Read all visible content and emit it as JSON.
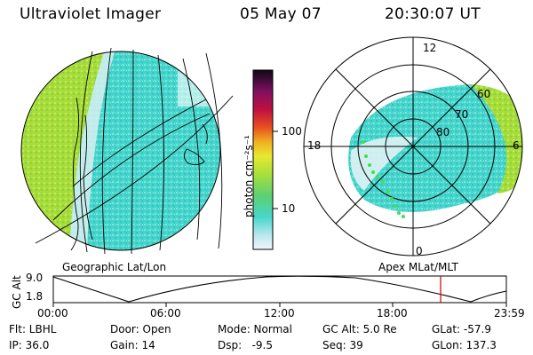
{
  "header": {
    "instrument": "Ultraviolet Imager",
    "date": "05 May 07",
    "time": "20:30:07 UT"
  },
  "panels": {
    "left_label": "Geographic Lat/Lon",
    "right_label": "Apex MLat/MLT"
  },
  "colorbar": {
    "unit_label": "photon cm⁻²s⁻¹",
    "tick_100": "100",
    "tick_10": "10"
  },
  "polar_labels": {
    "top": "12",
    "left": "18",
    "right": "6",
    "bottom": "0",
    "r60": "60",
    "r70": "70",
    "r80": "80"
  },
  "altitude_plot": {
    "axis_label": "GC Alt",
    "y_top": "9.0",
    "y_bottom": "1.8",
    "x_ticks": [
      "00:00",
      "06:00",
      "12:00",
      "18:00",
      "23:59"
    ],
    "current_time_marker_hours": 20.5
  },
  "info": {
    "filter": "Flt: LBHL",
    "ip": "IP: 36.0",
    "door": "Door: Open",
    "gain": "Gain: 14",
    "mode": "Mode: Normal",
    "dsp": "Dsp:   -9.5",
    "gc_alt": "GC Alt: 5.0 Re",
    "seq": "Seq: 39",
    "glat": "GLat: -57.9",
    "glon": "GLon: 137.3"
  },
  "colors": {
    "marker": "#cc0000",
    "green_band": "#a8e040",
    "cyan_band": "#3cd8cc",
    "dot_green": "#44dd55"
  }
}
